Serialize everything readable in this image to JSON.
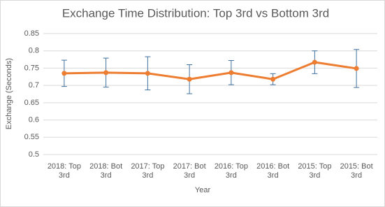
{
  "chart_data": {
    "type": "line",
    "title": "Exchange Time Distribution: Top 3rd vs Bottom 3rd",
    "x_label": "Year",
    "y_label": "Exchange (Seconds)",
    "categories": [
      "2018: Top 3rd",
      "2018: Bot 3rd",
      "2017: Top 3rd",
      "2017: Bot 3rd",
      "2016: Top 3rd",
      "2016: Bot 3rd",
      "2015: Top 3rd",
      "2015: Bot 3rd"
    ],
    "series": [
      {
        "color": "#ed7d31",
        "error_color": "#41719c",
        "values": [
          0.735,
          0.737,
          0.735,
          0.718,
          0.737,
          0.718,
          0.767,
          0.749
        ],
        "errors": [
          0.038,
          0.042,
          0.048,
          0.042,
          0.035,
          0.016,
          0.033,
          0.055
        ]
      }
    ],
    "ylim": [
      0.5,
      0.85
    ],
    "yticks": [
      0.5,
      0.55,
      0.6,
      0.65,
      0.7,
      0.75,
      0.8,
      0.85
    ],
    "grid": true
  }
}
